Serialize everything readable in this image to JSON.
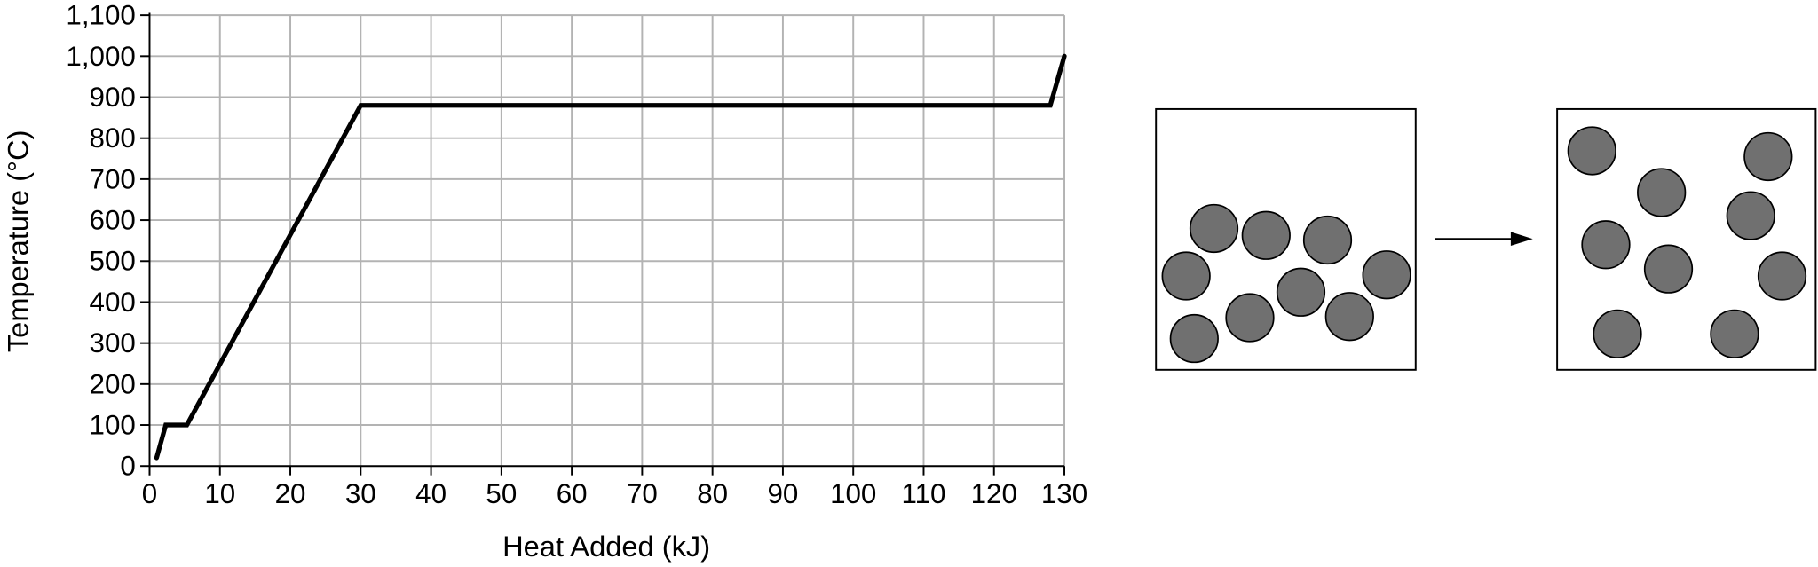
{
  "chart_data": {
    "type": "line",
    "xlabel": "Heat Added (kJ)",
    "ylabel": "Temperature (°C)",
    "xlim": [
      0,
      130
    ],
    "ylim": [
      0,
      1100
    ],
    "x_ticks": [
      "0",
      "10",
      "20",
      "30",
      "40",
      "50",
      "60",
      "70",
      "80",
      "90",
      "100",
      "110",
      "120",
      "130"
    ],
    "y_ticks": [
      "0",
      "100",
      "200",
      "300",
      "400",
      "500",
      "600",
      "700",
      "800",
      "900",
      "1,000",
      "1,100"
    ],
    "grid": true,
    "line_color": "#000000",
    "grid_color": "#b3b3b3",
    "series": [
      {
        "x": [
          1,
          2.3,
          5.3,
          30,
          128,
          130
        ],
        "y": [
          20,
          100,
          100,
          880,
          880,
          1000
        ]
      }
    ]
  },
  "particle_diagrams": {
    "particle_color": "#707070",
    "arrow_icon": "right-arrow-icon",
    "before": {
      "description_state": "closely packed",
      "count": 9
    },
    "after": {
      "description_state": "spread out",
      "count": 9
    }
  }
}
